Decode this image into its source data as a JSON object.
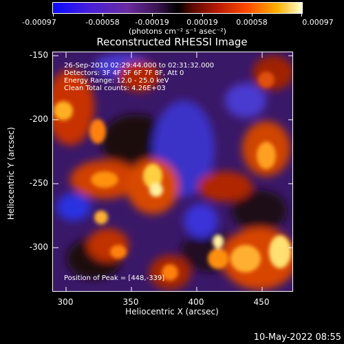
{
  "colorbar": {
    "labels": [
      "-0.00097",
      "-0.00058",
      "-0.00019",
      "0.00019",
      "0.00058",
      "0.00097"
    ],
    "units": "(photons cm⁻² s⁻¹ asec⁻²)"
  },
  "title": "Reconstructed RHESSI Image",
  "info": {
    "time_range": "26-Sep-2010 02:29:44.000 to 02:31:32.000",
    "detectors": "Detectors: 3F 4F 5F 6F 7F 8F, Att 0",
    "energy": "Energy Range: 12.0 - 25.0 keV",
    "method": "Clean     Total counts: 4.26E+03",
    "peak": "Position of Peak = [448,-339]"
  },
  "axes": {
    "xlabel": "Heliocentric X (arcsec)",
    "ylabel": "Heliocentric Y (arcsec)",
    "xticks": [
      "300",
      "350",
      "400",
      "450"
    ],
    "yticks": [
      "-150",
      "-200",
      "-250",
      "-300"
    ]
  },
  "timestamp": "10-May-2022 08:55"
}
